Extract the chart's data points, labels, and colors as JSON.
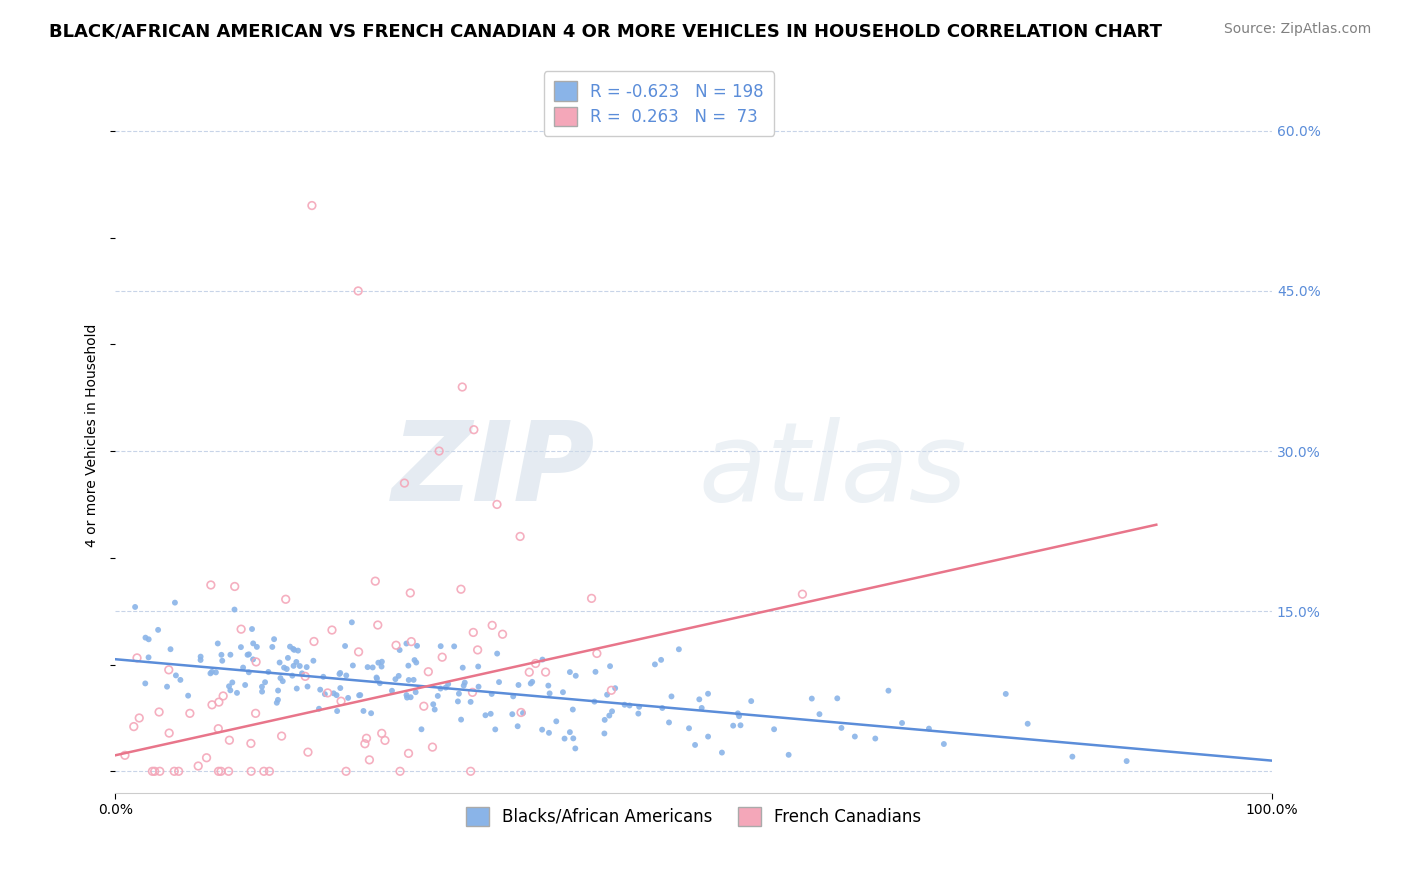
{
  "title": "BLACK/AFRICAN AMERICAN VS FRENCH CANADIAN 4 OR MORE VEHICLES IN HOUSEHOLD CORRELATION CHART",
  "source": "Source: ZipAtlas.com",
  "ylabel": "4 or more Vehicles in Household",
  "xlim": [
    0.0,
    1.0
  ],
  "ylim": [
    -0.02,
    0.65
  ],
  "yticks": [
    0.0,
    0.15,
    0.3,
    0.45,
    0.6
  ],
  "ytick_labels": [
    "",
    "15.0%",
    "30.0%",
    "45.0%",
    "60.0%"
  ],
  "blue_R": -0.623,
  "blue_N": 198,
  "pink_R": 0.263,
  "pink_N": 73,
  "blue_color": "#8ab4e8",
  "pink_color": "#f4a7b9",
  "blue_line_color": "#5b8dd9",
  "pink_line_color": "#e8758a",
  "legend_blue_label": "Blacks/African Americans",
  "legend_pink_label": "French Canadians",
  "background_color": "#ffffff",
  "grid_color": "#c8d4e8",
  "watermark_zip": "ZIP",
  "watermark_atlas": "atlas",
  "title_fontsize": 13,
  "source_fontsize": 10,
  "axis_label_fontsize": 10,
  "tick_fontsize": 10,
  "legend_fontsize": 12,
  "blue_intercept": 0.105,
  "blue_slope": -0.095,
  "pink_intercept": 0.015,
  "pink_slope": 0.24
}
